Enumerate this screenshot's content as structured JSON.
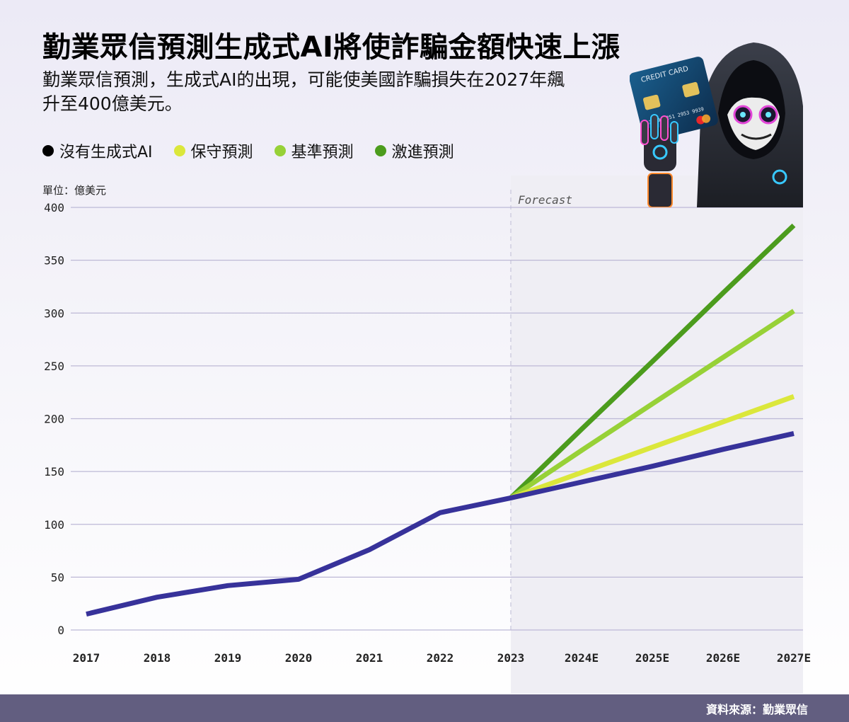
{
  "title": "勤業眾信預測生成式AI將使詐騙金額快速上漲",
  "subtitle": "勤業眾信預測，生成式AI的出現，可能使美國詐騙損失在2027年飆升至400億美元。",
  "unit_label": "單位：億美元",
  "footer_source": "資料來源：勤業眾信",
  "illustration": {
    "card_text": "CREDIT CARD",
    "card_number": "3359 2251 2953 9939"
  },
  "chart_data": {
    "type": "line",
    "categories": [
      "2017",
      "2018",
      "2019",
      "2020",
      "2021",
      "2022",
      "2023",
      "2024E",
      "2025E",
      "2026E",
      "2027E"
    ],
    "ylim": [
      0,
      400
    ],
    "yticks": [
      0,
      50,
      100,
      150,
      200,
      250,
      300,
      350,
      400
    ],
    "forecast_label": "Forecast",
    "forecast_start": "2023",
    "grid": true,
    "legend_position": "top-left",
    "series": [
      {
        "name": "沒有生成式AI",
        "color": "#37329a",
        "values": [
          15,
          31,
          42,
          48,
          76,
          111,
          125,
          140,
          155,
          171,
          186
        ]
      },
      {
        "name": "保守預測",
        "color": "#dbe73b",
        "values": [
          null,
          null,
          null,
          null,
          null,
          null,
          125,
          149,
          173,
          197,
          221
        ]
      },
      {
        "name": "基準預測",
        "color": "#97d137",
        "values": [
          null,
          null,
          null,
          null,
          null,
          null,
          125,
          170,
          214,
          258,
          302
        ]
      },
      {
        "name": "激進預測",
        "color": "#4c9c1d",
        "values": [
          null,
          null,
          null,
          null,
          null,
          null,
          125,
          190,
          254,
          319,
          383
        ]
      }
    ]
  }
}
